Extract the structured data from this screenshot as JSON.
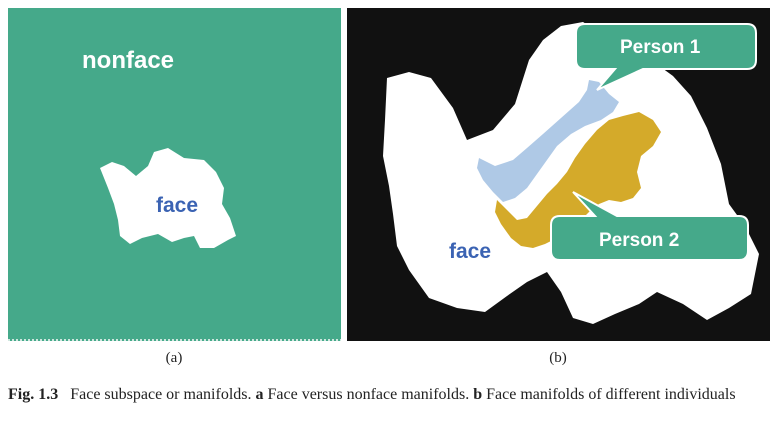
{
  "panel_a": {
    "outer_label": "nonface",
    "inner_label": "face",
    "panel_label": "(a)",
    "colors": {
      "background": "#45a98a",
      "region": "#ffffff",
      "inner_text": "#3b63b3"
    }
  },
  "panel_b": {
    "face_label": "face",
    "person1_label": "Person 1",
    "person2_label": "Person 2",
    "panel_label": "(b)",
    "colors": {
      "background": "#111111",
      "face_region": "#ffffff",
      "person1_region": "#afc9e6",
      "person2_region": "#d4aa2a",
      "callout": "#45a98a"
    }
  },
  "caption": {
    "fig_number": "Fig. 1.3",
    "text_1": "Face subspace or manifolds.",
    "a_marker": "a",
    "text_2": "Face versus nonface manifolds.",
    "b_marker": "b",
    "text_3": "Face manifolds of different individuals"
  }
}
